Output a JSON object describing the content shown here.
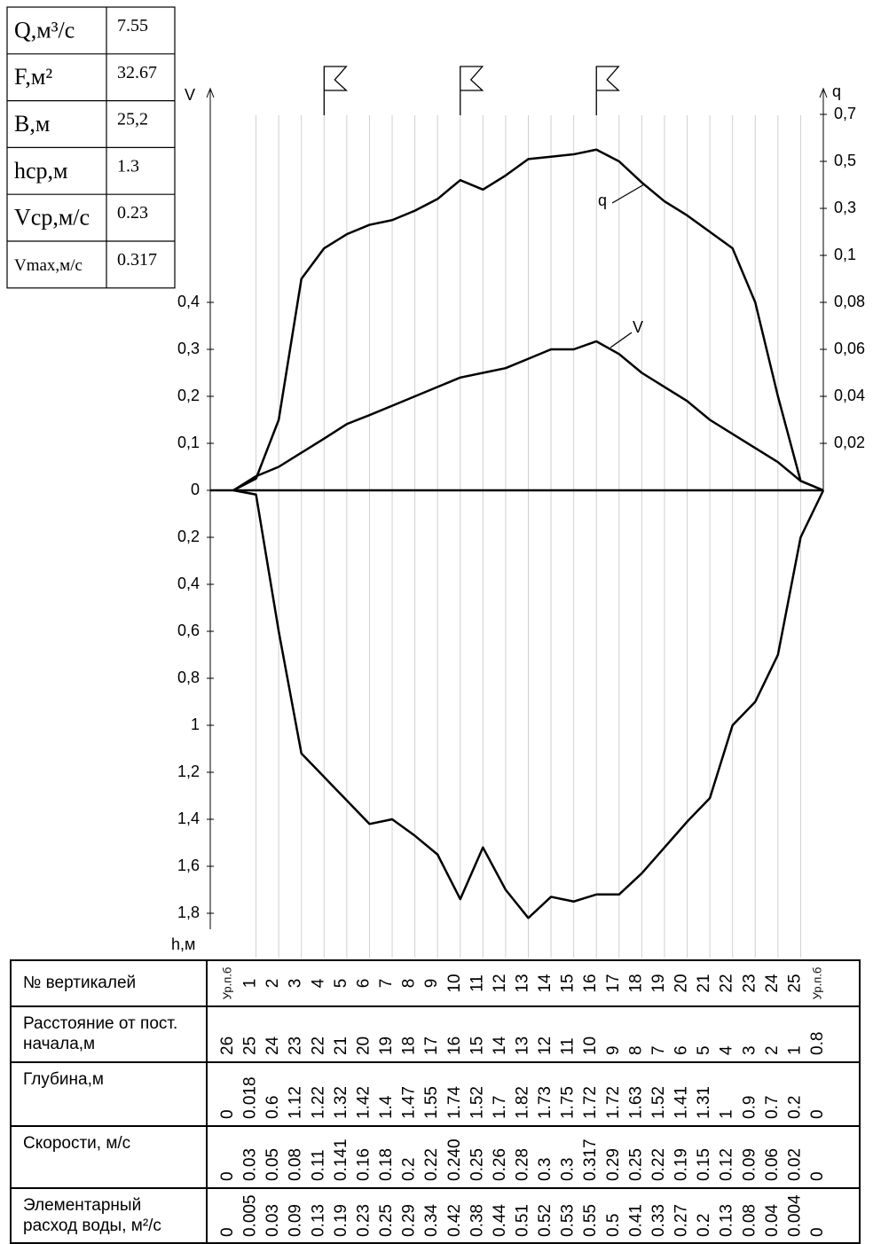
{
  "summary": [
    {
      "label": "Q,м³/с",
      "value": 7.55
    },
    {
      "label": "F,м²",
      "value": 32.67
    },
    {
      "label": "B,м",
      "value": "25,2"
    },
    {
      "label": "hср,м",
      "value": 1.3
    },
    {
      "label": "Vср,м/с",
      "value": 0.23
    },
    {
      "label": "Vmax,м/с",
      "value": 0.317
    }
  ],
  "chart": {
    "v_axis_label": "V",
    "q_axis_label": "q",
    "h_axis_label": "h,м",
    "v_curve_label": "V",
    "q_curve_label": "q",
    "vticks": [
      0,
      {
        "value": 0.1,
        "label": "0,1"
      },
      {
        "value": 0.2,
        "label": "0,2"
      },
      {
        "value": 0.3,
        "label": "0,3"
      },
      {
        "value": 0.4,
        "label": "0,4"
      }
    ],
    "qticks": [
      {
        "value": 0.02,
        "label": "0,02"
      },
      {
        "value": 0.04,
        "label": "0,04"
      },
      {
        "value": 0.06,
        "label": "0,06"
      },
      {
        "value": 0.08,
        "label": "0,08"
      },
      {
        "value": 0.1,
        "label": "0,1"
      },
      {
        "value": 0.3,
        "label": "0,3"
      },
      {
        "value": 0.5,
        "label": "0,5"
      },
      {
        "value": 0.7,
        "label": "0,7"
      }
    ],
    "hticks": [
      {
        "value": 0.2,
        "label": "0,2"
      },
      {
        "value": 0.4,
        "label": "0,4"
      },
      {
        "value": 0.6,
        "label": "0,6"
      },
      {
        "value": 0.8,
        "label": "0,8"
      },
      1,
      {
        "value": 1.2,
        "label": "1,2"
      },
      {
        "value": 1.4,
        "label": "1,4"
      },
      {
        "value": 1.6,
        "label": "1,6"
      },
      {
        "value": 1.8,
        "label": "1,8"
      }
    ]
  },
  "profile": {
    "row_labels": [
      "№ вертикалей",
      "Расстояние от пост. начала,м",
      "Глубина,м",
      "Скорости, м/с",
      "Элементарный расход воды, м²/с"
    ],
    "verticals": [
      "Ур.п.б",
      "1",
      "2",
      "3",
      "4",
      "5",
      "6",
      "7",
      "8",
      "9",
      "10",
      "11",
      "12",
      "13",
      "14",
      "15",
      "16",
      "17",
      "18",
      "19",
      "20",
      "21",
      "22",
      "23",
      "24",
      "25",
      "Ур.п.б"
    ],
    "distances": [
      26,
      25,
      24,
      23,
      22,
      21,
      20,
      19,
      18,
      17,
      16,
      15,
      14,
      13,
      12,
      11,
      10,
      9,
      8,
      7,
      6,
      5,
      4,
      3,
      2,
      1,
      0.8
    ],
    "depths": [
      0,
      0.018,
      0.6,
      1.12,
      1.22,
      1.32,
      1.42,
      1.4,
      1.47,
      1.55,
      1.74,
      1.52,
      1.7,
      1.82,
      1.73,
      1.75,
      1.72,
      1.72,
      1.63,
      1.52,
      1.41,
      1.31,
      1,
      0.9,
      0.7,
      0.2,
      0
    ],
    "velocities": [
      0,
      0.03,
      0.05,
      0.08,
      0.11,
      0.141,
      0.16,
      0.18,
      0.2,
      0.22,
      "0.240",
      0.25,
      0.26,
      0.28,
      0.3,
      0.3,
      0.317,
      0.29,
      0.25,
      0.22,
      0.19,
      0.15,
      0.12,
      0.09,
      0.06,
      0.02,
      0
    ],
    "discharges": [
      0,
      0.005,
      0.03,
      0.09,
      0.13,
      0.19,
      0.23,
      0.25,
      0.29,
      0.34,
      0.42,
      0.38,
      0.44,
      0.51,
      0.52,
      0.53,
      0.55,
      0.5,
      0.41,
      0.33,
      0.27,
      0.2,
      0.13,
      0.08,
      0.04,
      0.004,
      0
    ]
  }
}
